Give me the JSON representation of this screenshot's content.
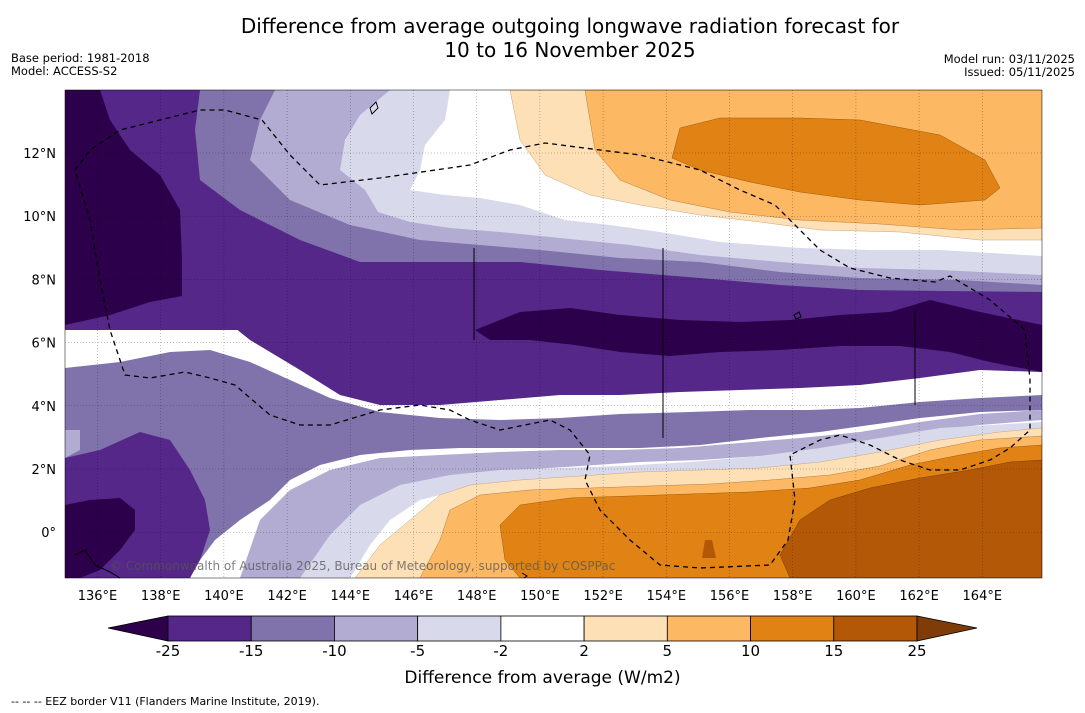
{
  "title": {
    "line1": "Difference from average outgoing longwave radiation forecast for",
    "line2": "10 to 16 November 2025"
  },
  "meta_left": {
    "base_period": "Base period: 1981-2018",
    "model": "Model: ACCESS-S2"
  },
  "meta_right": {
    "model_run": "Model run: 03/11/2025",
    "issued": "Issued: 05/11/2025"
  },
  "map": {
    "lon_ticks": [
      "136°E",
      "138°E",
      "140°E",
      "142°E",
      "144°E",
      "146°E",
      "148°E",
      "150°E",
      "152°E",
      "154°E",
      "156°E",
      "158°E",
      "160°E",
      "162°E",
      "164°E"
    ],
    "lat_ticks": [
      "12°N",
      "10°N",
      "8°N",
      "6°N",
      "4°N",
      "2°N",
      "0°"
    ],
    "watermark": "© Commonwealth of Australia 2025, Bureau of Meteorology, supported by COSPPac"
  },
  "colorbar": {
    "labels": [
      "-25",
      "-15",
      "-10",
      "-5",
      "-2",
      "2",
      "5",
      "10",
      "15",
      "25"
    ],
    "title": "Difference from average (W/m2)",
    "colors": {
      "below": "#2d004b",
      "bins": [
        "#542788",
        "#8073ac",
        "#b2abd2",
        "#d8daeb",
        "#ffffff",
        "#fee0b6",
        "#fdb863",
        "#e08214",
        "#b35806"
      ],
      "above": "#7f3b08"
    }
  },
  "footnote": "--  --  -- EEZ border V11 (Flanders Marine Institute, 2019)."
}
